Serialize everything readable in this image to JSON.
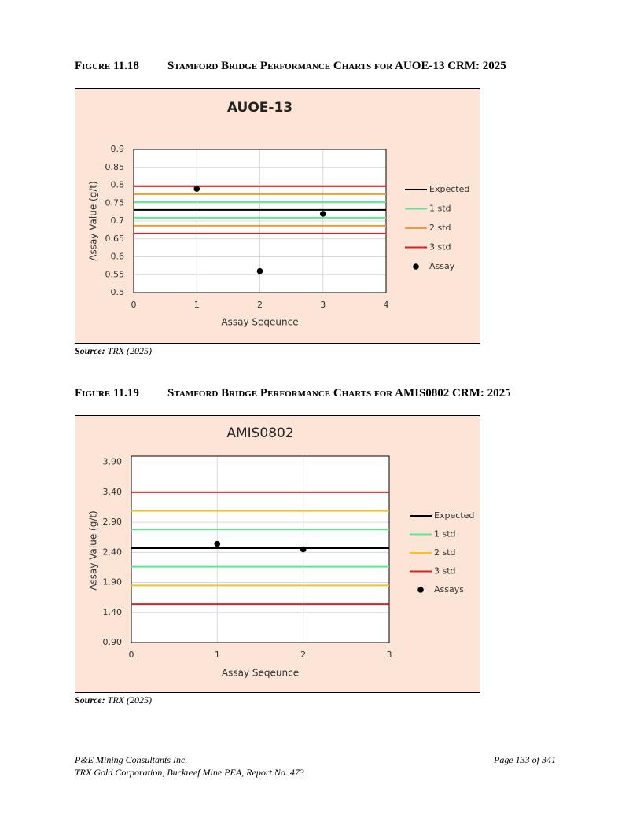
{
  "figures": [
    {
      "number": "Figure 11.18",
      "title": "Stamford Bridge Performance Charts for AUOE-13 CRM: 2025",
      "source_label": "Source:",
      "source_text": "TRX (2025)"
    },
    {
      "number": "Figure 11.19",
      "title": "Stamford Bridge Performance Charts for AMIS0802 CRM: 2025",
      "source_label": "Source:",
      "source_text": "TRX (2025)"
    }
  ],
  "chart_data": [
    {
      "type": "scatter",
      "title": "AUOE-13",
      "x_label": "Assay Seqeunce",
      "y_label": "Assay Value (g/t)",
      "xlim": [
        0,
        4
      ],
      "xticks": [
        0,
        1,
        2,
        3,
        4
      ],
      "ylim": [
        0.5,
        0.9
      ],
      "yticks": [
        0.5,
        0.55,
        0.6,
        0.65,
        0.7,
        0.75,
        0.8,
        0.85,
        0.9
      ],
      "grid": true,
      "series": [
        {
          "name": "Expected",
          "color": "#000000",
          "kind": "hline",
          "values": [
            0.731
          ]
        },
        {
          "name": "1 std",
          "color": "#5de88f",
          "kind": "hline",
          "values": [
            0.709,
            0.753
          ]
        },
        {
          "name": "2 std",
          "color": "#f29b30",
          "kind": "hline",
          "values": [
            0.687,
            0.775
          ]
        },
        {
          "name": "3 std",
          "color": "#e02020",
          "kind": "hline",
          "values": [
            0.665,
            0.797
          ]
        },
        {
          "name": "Assay",
          "color": "#000000",
          "kind": "points",
          "x": [
            1,
            2,
            3
          ],
          "values": [
            0.79,
            0.56,
            0.72
          ]
        }
      ]
    },
    {
      "type": "scatter",
      "title": "AMIS0802",
      "x_label": "Assay Seqeunce",
      "y_label": "Assay Value (g/t)",
      "xlim": [
        0,
        3
      ],
      "xticks": [
        0,
        1,
        2,
        3
      ],
      "ylim": [
        0.9,
        4.0
      ],
      "yticks": [
        {
          "value": 0.9,
          "label": "0.90"
        },
        {
          "value": 1.4,
          "label": "1.40"
        },
        {
          "value": 1.9,
          "label": "1.90"
        },
        {
          "value": 2.4,
          "label": "2.40"
        },
        {
          "value": 2.9,
          "label": "2.90"
        },
        {
          "value": 3.4,
          "label": "3.40"
        },
        {
          "value": 3.9,
          "label": "3.90"
        }
      ],
      "grid": true,
      "series": [
        {
          "name": "Expected",
          "color": "#000000",
          "kind": "hline",
          "values": [
            2.47
          ]
        },
        {
          "name": "1 std",
          "color": "#5de88f",
          "kind": "hline",
          "values": [
            2.16,
            2.78
          ]
        },
        {
          "name": "2 std",
          "color": "#f7c31a",
          "kind": "hline",
          "values": [
            1.85,
            3.09
          ]
        },
        {
          "name": "3 std",
          "color": "#e02020",
          "kind": "hline",
          "values": [
            1.54,
            3.4
          ]
        },
        {
          "name": "Assays",
          "color": "#000000",
          "kind": "points",
          "x": [
            1,
            2
          ],
          "values": [
            2.54,
            2.45
          ]
        }
      ]
    }
  ],
  "footer": {
    "company": "P&E Mining Consultants Inc.",
    "report": "TRX Gold Corporation, Buckreef Mine PEA, Report No. 473",
    "page": "Page 133 of 341"
  }
}
